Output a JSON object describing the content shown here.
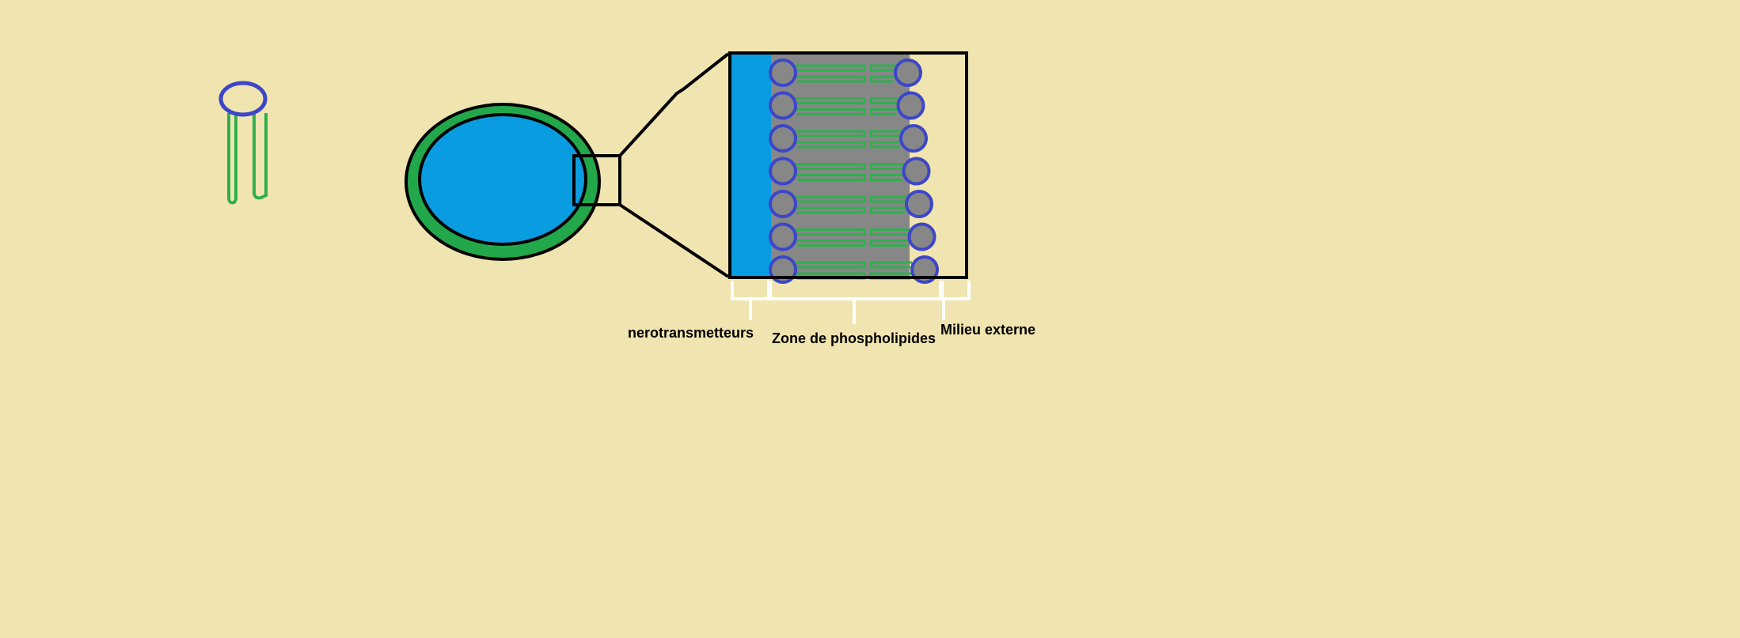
{
  "labels": {
    "neurotransmitters": "nerotransmetteurs",
    "phospholipid_zone": "Zone de phospholipides",
    "external_medium": "Milieu externe"
  },
  "phospholipid_rows": 7,
  "colors": {
    "background": "#f0e4b0",
    "vesicle_interior": "#0a9ce0",
    "membrane": "#22a84a",
    "phospholipid_head_fill": "#878787",
    "phospholipid_head_stroke": "#3c46c8",
    "phospholipid_tail": "#2eb04e",
    "outline": "#000000",
    "bracket": "#ffffff"
  },
  "icons": [
    "phospholipid-icon",
    "vesicle",
    "magnified-membrane"
  ]
}
